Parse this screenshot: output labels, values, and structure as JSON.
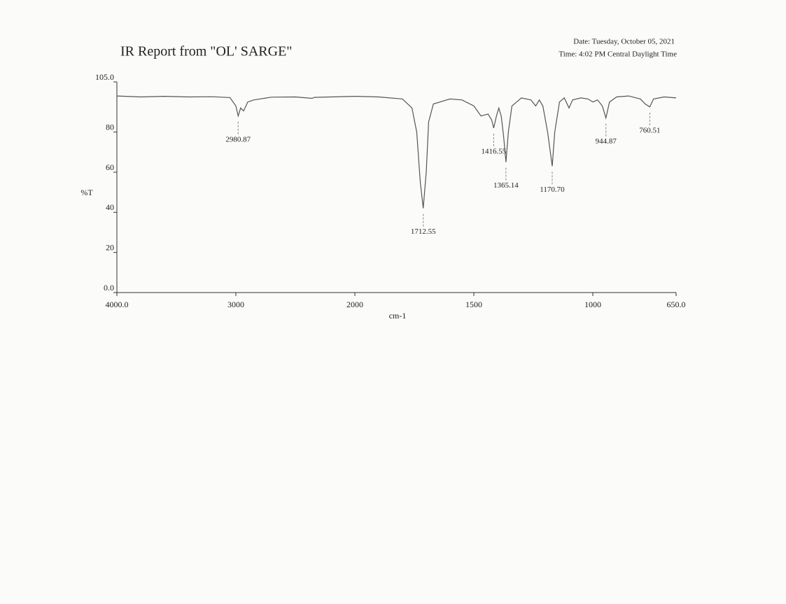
{
  "chart_data": {
    "type": "line",
    "title": "IR Report from \"OL' SARGE\"",
    "date": "Date: Tuesday, October 05, 2021",
    "time": "Time: 4:02 PM Central Daylight Time",
    "xlabel": "cm-1",
    "ylabel": "%T",
    "color": "#555555",
    "x_reversed": true,
    "x_scale_break": 2000,
    "x_scale_factor_below_break": 2,
    "xlim": [
      4000,
      650
    ],
    "xticks": [
      {
        "value": 4000,
        "label": "4000.0"
      },
      3000,
      2000,
      1500,
      1000,
      {
        "value": 650,
        "label": "650.0"
      }
    ],
    "ylim": [
      0,
      105
    ],
    "yticks": [
      {
        "value": 0,
        "label": "0.0"
      },
      20,
      40,
      60,
      80,
      {
        "value": 105,
        "label": "105.0"
      }
    ],
    "x": [
      4000,
      3800,
      3600,
      3400,
      3200,
      3050,
      3000,
      2980.87,
      2960,
      2935,
      2900,
      2850,
      2700,
      2500,
      2360,
      2340,
      2200,
      2000,
      1900,
      1800,
      1760,
      1740,
      1725,
      1712.55,
      1700,
      1690,
      1670,
      1600,
      1550,
      1500,
      1470,
      1440,
      1425,
      1416.55,
      1405,
      1395,
      1385,
      1375,
      1365.14,
      1355,
      1340,
      1300,
      1260,
      1240,
      1225,
      1210,
      1190,
      1170.7,
      1160,
      1140,
      1120,
      1100,
      1085,
      1050,
      1020,
      1000,
      980,
      960,
      944.87,
      930,
      900,
      850,
      800,
      780,
      760.51,
      745,
      700,
      650
    ],
    "values": [
      98,
      97.5,
      97.8,
      97.5,
      97.6,
      97.2,
      93,
      88,
      92,
      90.5,
      95,
      96,
      97.4,
      97.5,
      96.8,
      97.3,
      97.5,
      97.8,
      97.5,
      96.5,
      92,
      80,
      55,
      42,
      60,
      85,
      94,
      96.5,
      96,
      93,
      88,
      89,
      86,
      82,
      88,
      92,
      88,
      78,
      65,
      80,
      93,
      97,
      96,
      93,
      96,
      93,
      80,
      63,
      80,
      95,
      97,
      92,
      96,
      97,
      96.5,
      95,
      96,
      93,
      87,
      95,
      97.5,
      98,
      96.5,
      94,
      92.5,
      96.5,
      97.5,
      97
    ],
    "peaks": [
      {
        "x": 2980.87,
        "label": "2980.87"
      },
      {
        "x": 1712.55,
        "label": "1712.55"
      },
      {
        "x": 1416.55,
        "label": "1416.55"
      },
      {
        "x": 1365.14,
        "label": "1365.14"
      },
      {
        "x": 1170.7,
        "label": "1170.70"
      },
      {
        "x": 944.87,
        "label": "944.87"
      },
      {
        "x": 760.51,
        "label": "760.51"
      }
    ]
  }
}
